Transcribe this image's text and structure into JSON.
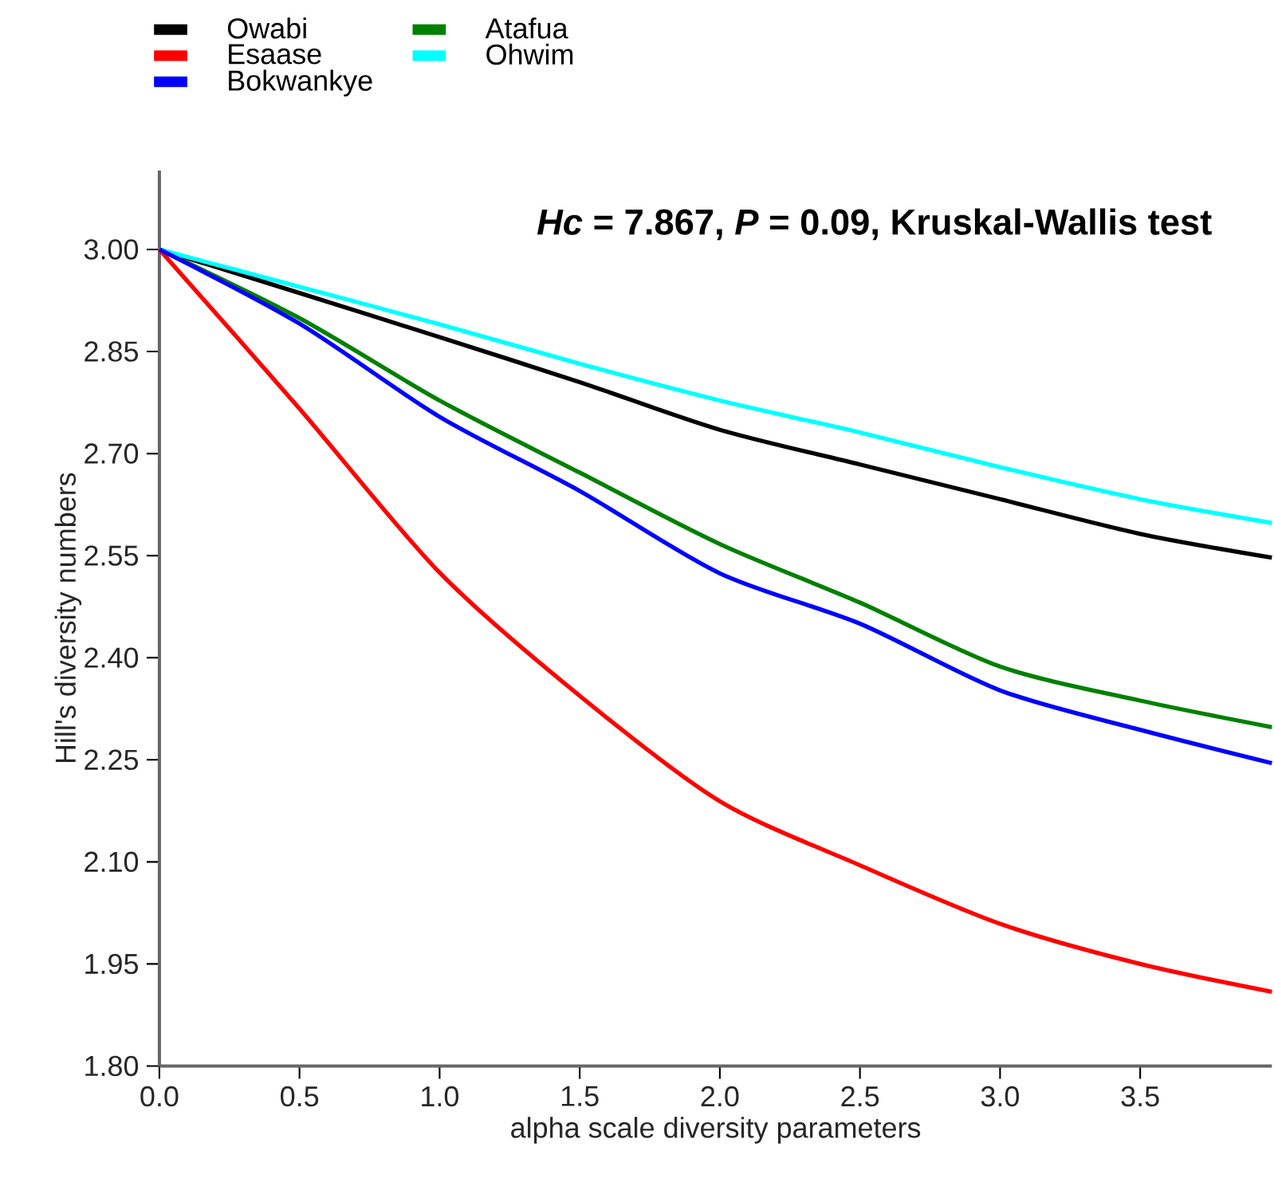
{
  "chart_data": {
    "type": "line",
    "xlabel": "alpha scale diversity parameters",
    "ylabel": "Hill's diversity numbers",
    "annotations": [
      "*Hc* = 7.867, *P* = 0.09, Kruskal-Wallis test"
    ],
    "x": [
      0,
      0.5,
      1.0,
      1.5,
      2.0,
      2.5,
      3.0,
      3.5,
      3.97
    ],
    "xlim": [
      0,
      3.97
    ],
    "xticks": [
      {
        "value": 0,
        "label": "0.0"
      },
      0.5,
      {
        "value": 1,
        "label": "1.0"
      },
      1.5,
      {
        "value": 2,
        "label": "2.0"
      },
      2.5,
      {
        "value": 3,
        "label": "3.0"
      },
      3.5
    ],
    "ylim": [
      1.8,
      3.116
    ],
    "yticks": [
      {
        "value": 1.8,
        "label": "1.80"
      },
      1.95,
      {
        "value": 2.1,
        "label": "2.10"
      },
      2.25,
      {
        "value": 2.4,
        "label": "2.40"
      },
      2.55,
      {
        "value": 2.7,
        "label": "2.70"
      },
      2.85,
      {
        "value": 3.0,
        "label": "3.00"
      }
    ],
    "legend": "top left",
    "grid": false,
    "marker": "none",
    "line_style": "solid",
    "series": [
      {
        "name": "Owabi",
        "color": "#000000",
        "values": [
          3.0,
          2.936,
          2.871,
          2.805,
          2.735,
          2.684,
          2.633,
          2.582,
          2.547
        ]
      },
      {
        "name": "Esaase",
        "color": "#ff0000",
        "values": [
          3.0,
          2.766,
          2.525,
          2.344,
          2.189,
          2.095,
          2.009,
          1.95,
          1.909
        ]
      },
      {
        "name": "Bokwankye",
        "color": "#0000ff",
        "values": [
          3.0,
          2.891,
          2.754,
          2.645,
          2.524,
          2.45,
          2.352,
          2.294,
          2.245
        ]
      },
      {
        "name": "Atafua",
        "color": "#008000",
        "values": [
          3.0,
          2.899,
          2.778,
          2.672,
          2.567,
          2.481,
          2.387,
          2.337,
          2.298
        ]
      },
      {
        "name": "Ohwim",
        "color": "#00ffff",
        "values": [
          3.0,
          2.945,
          2.89,
          2.832,
          2.778,
          2.731,
          2.68,
          2.633,
          2.598
        ]
      }
    ]
  }
}
